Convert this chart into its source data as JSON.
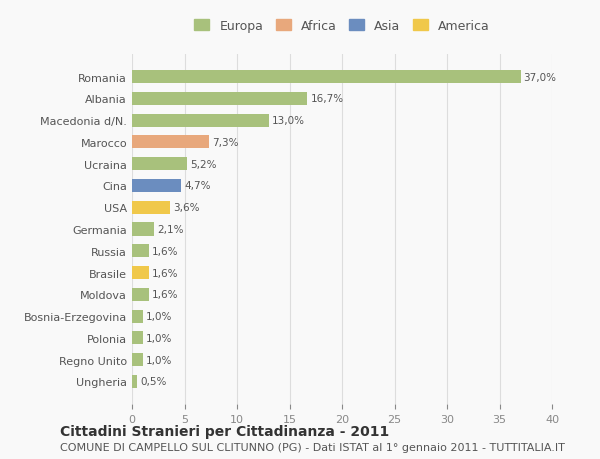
{
  "countries": [
    "Romania",
    "Albania",
    "Macedonia d/N.",
    "Marocco",
    "Ucraina",
    "Cina",
    "USA",
    "Germania",
    "Russia",
    "Brasile",
    "Moldova",
    "Bosnia-Erzegovina",
    "Polonia",
    "Regno Unito",
    "Ungheria"
  ],
  "values": [
    37.0,
    16.7,
    13.0,
    7.3,
    5.2,
    4.7,
    3.6,
    2.1,
    1.6,
    1.6,
    1.6,
    1.0,
    1.0,
    1.0,
    0.5
  ],
  "labels": [
    "37,0%",
    "16,7%",
    "13,0%",
    "7,3%",
    "5,2%",
    "4,7%",
    "3,6%",
    "2,1%",
    "1,6%",
    "1,6%",
    "1,6%",
    "1,0%",
    "1,0%",
    "1,0%",
    "0,5%"
  ],
  "continents": [
    "Europa",
    "Europa",
    "Europa",
    "Africa",
    "Europa",
    "Asia",
    "America",
    "Europa",
    "Europa",
    "America",
    "Europa",
    "Europa",
    "Europa",
    "Europa",
    "Europa"
  ],
  "colors": {
    "Europa": "#a8c17c",
    "Africa": "#e8a87c",
    "Asia": "#6b8dbf",
    "America": "#f0c84a"
  },
  "legend_order": [
    "Europa",
    "Africa",
    "Asia",
    "America"
  ],
  "title": "Cittadini Stranieri per Cittadinanza - 2011",
  "subtitle": "COMUNE DI CAMPELLO SUL CLITUNNO (PG) - Dati ISTAT al 1° gennaio 2011 - TUTTITALIA.IT",
  "xlim": [
    0,
    40
  ],
  "xticks": [
    0,
    5,
    10,
    15,
    20,
    25,
    30,
    35,
    40
  ],
  "background_color": "#f9f9f9",
  "grid_color": "#dddddd",
  "bar_height": 0.6,
  "title_fontsize": 10,
  "subtitle_fontsize": 8,
  "label_fontsize": 7.5,
  "tick_fontsize": 8,
  "legend_fontsize": 9
}
